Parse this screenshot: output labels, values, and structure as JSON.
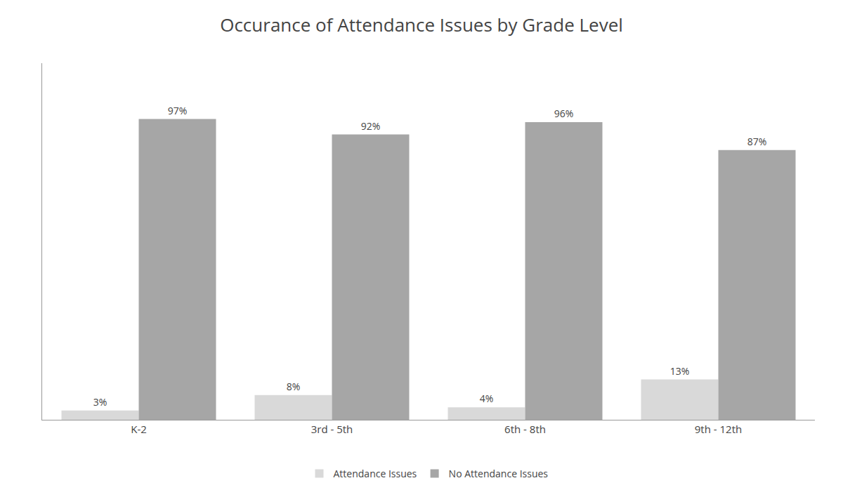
{
  "chart_data": {
    "type": "bar",
    "title": "Occurance of Attendance Issues by Grade Level",
    "categories": [
      "K-2",
      "3rd - 5th",
      "6th - 8th",
      "9th - 12th"
    ],
    "series": [
      {
        "name": "Attendance Issues",
        "color": "#d9d9d9",
        "values": [
          3,
          8,
          4,
          13
        ],
        "value_labels": [
          "3%",
          "8%",
          "4%",
          "13%"
        ]
      },
      {
        "name": "No Attendance Issues",
        "color": "#a6a6a6",
        "values": [
          97,
          92,
          96,
          87
        ],
        "value_labels": [
          "97%",
          "92%",
          "96%",
          "87%"
        ]
      }
    ],
    "ylim": [
      0,
      115
    ],
    "yticks": [],
    "grid": false,
    "legend": "bottom",
    "data_labels": true,
    "tick_labels": "x"
  }
}
